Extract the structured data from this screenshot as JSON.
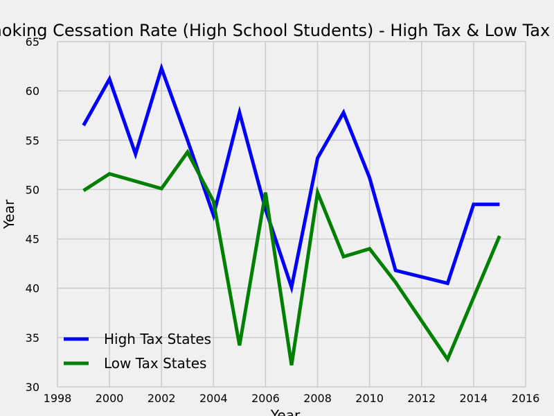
{
  "chart_data": {
    "type": "line",
    "title": "Smoking Cessation Rate (High School Students) - High Tax & Low Tax States",
    "xlabel": "Year",
    "ylabel": "Year",
    "xlim": [
      1998,
      2016
    ],
    "ylim": [
      30,
      65
    ],
    "x_ticks": [
      1998,
      2000,
      2002,
      2004,
      2006,
      2008,
      2010,
      2012,
      2014,
      2016
    ],
    "y_ticks": [
      30,
      35,
      40,
      45,
      50,
      55,
      60,
      65
    ],
    "grid": true,
    "legend_position": "lower-left",
    "series": [
      {
        "name": "High Tax States",
        "color": "#0000ff",
        "points": [
          [
            1999,
            56.5
          ],
          [
            2000,
            61.2
          ],
          [
            2001,
            53.6
          ],
          [
            2002,
            62.3
          ],
          [
            2003,
            55.0
          ],
          [
            2004,
            47.4
          ],
          [
            2005,
            57.8
          ],
          [
            2006,
            48.0
          ],
          [
            2007,
            40.1
          ],
          [
            2008,
            53.2
          ],
          [
            2009,
            57.8
          ],
          [
            2010,
            51.2
          ],
          [
            2011,
            41.8
          ],
          [
            2013,
            40.5
          ],
          [
            2014,
            48.5
          ],
          [
            2015,
            48.5
          ]
        ]
      },
      {
        "name": "Low Tax States",
        "color": "#008000",
        "points": [
          [
            1999,
            49.9
          ],
          [
            2000,
            51.6
          ],
          [
            2002,
            50.1
          ],
          [
            2003,
            53.8
          ],
          [
            2004,
            48.8
          ],
          [
            2005,
            34.2
          ],
          [
            2006,
            49.7
          ],
          [
            2007,
            32.2
          ],
          [
            2008,
            49.7
          ],
          [
            2009,
            43.2
          ],
          [
            2010,
            44.0
          ],
          [
            2011,
            40.6
          ],
          [
            2013,
            32.8
          ],
          [
            2015,
            45.3
          ]
        ]
      }
    ]
  }
}
